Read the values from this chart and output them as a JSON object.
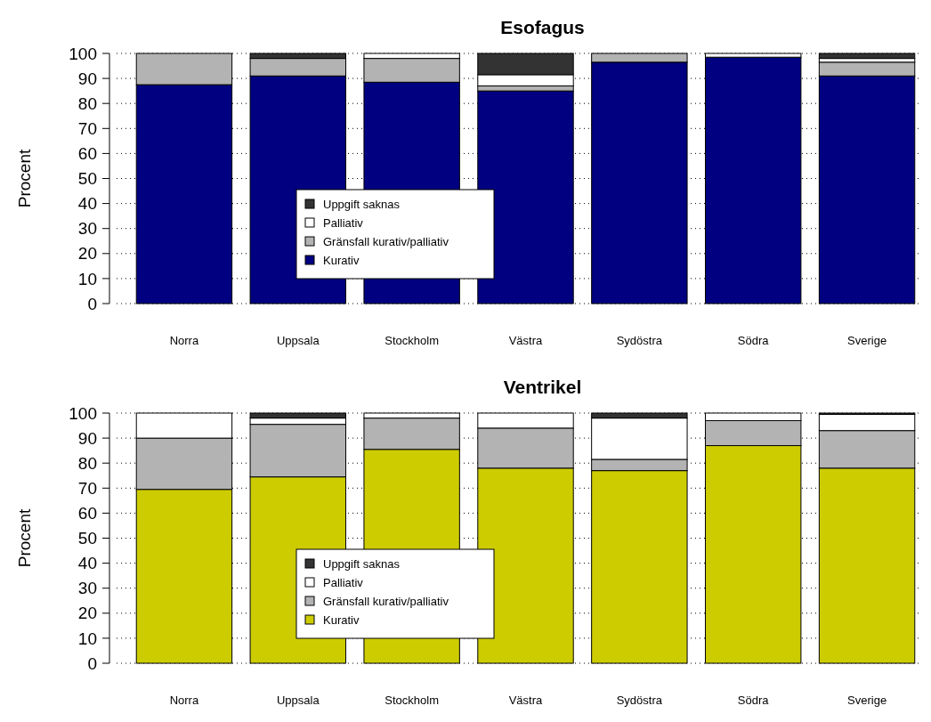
{
  "chart_data": [
    {
      "type": "bar",
      "title": "Esofagus",
      "ylabel": "Procent",
      "stacked": true,
      "categories": [
        "Norra",
        "Uppsala",
        "Stockholm",
        "Västra",
        "Sydöstra",
        "Södra",
        "Sverige"
      ],
      "series": [
        {
          "name": "Kurativ",
          "color": "#000080",
          "values": [
            87.5,
            91,
            88.5,
            85,
            96.5,
            98.5,
            91
          ]
        },
        {
          "name": "Gränsfall kurativ/palliativ",
          "color": "#b3b3b3",
          "values": [
            12.5,
            7,
            9.5,
            2,
            3.5,
            0,
            5.5
          ]
        },
        {
          "name": "Palliativ",
          "color": "#ffffff",
          "values": [
            0,
            0,
            2,
            4.5,
            0,
            1.5,
            1.5
          ]
        },
        {
          "name": "Uppgift saknas",
          "color": "#333333",
          "values": [
            0,
            2,
            0,
            8.5,
            0,
            0,
            2
          ]
        }
      ],
      "ylim": [
        0,
        100
      ],
      "yticks": [
        0,
        10,
        20,
        30,
        40,
        50,
        60,
        70,
        80,
        90,
        100
      ],
      "grid": "y",
      "legend": "bottom"
    },
    {
      "type": "bar",
      "title": "Ventrikel",
      "ylabel": "Procent",
      "stacked": true,
      "categories": [
        "Norra",
        "Uppsala",
        "Stockholm",
        "Västra",
        "Sydöstra",
        "Södra",
        "Sverige"
      ],
      "series": [
        {
          "name": "Kurativ",
          "color": "#cccc00",
          "values": [
            69.5,
            74.5,
            85.5,
            78,
            77,
            87,
            78
          ]
        },
        {
          "name": "Gränsfall kurativ/palliativ",
          "color": "#b3b3b3",
          "values": [
            20.5,
            21,
            12.5,
            16,
            4.5,
            10,
            15
          ]
        },
        {
          "name": "Palliativ",
          "color": "#ffffff",
          "values": [
            10,
            2.5,
            2,
            6,
            16.5,
            3,
            6.5
          ]
        },
        {
          "name": "Uppgift saknas",
          "color": "#333333",
          "values": [
            0,
            2,
            0,
            0,
            2,
            0,
            0.5
          ]
        }
      ],
      "ylim": [
        0,
        100
      ],
      "yticks": [
        0,
        10,
        20,
        30,
        40,
        50,
        60,
        70,
        80,
        90,
        100
      ],
      "grid": "y",
      "legend": "bottom"
    }
  ]
}
